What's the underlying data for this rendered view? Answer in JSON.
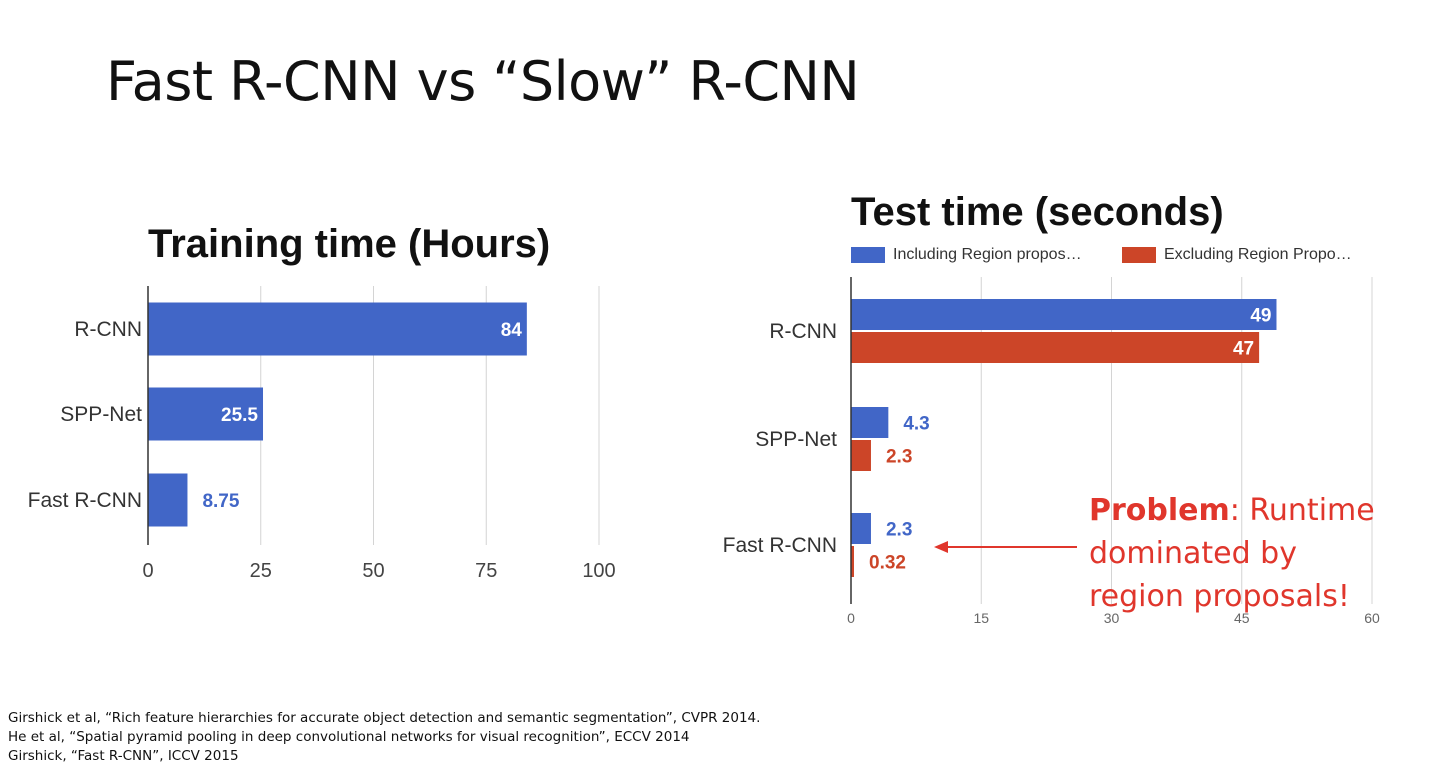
{
  "slide": {
    "title": "Fast R-CNN vs “Slow” R-CNN"
  },
  "annotation": {
    "strong": "Problem",
    "rest_line1": ": Runtime",
    "line2": "dominated by",
    "line3": "region proposals!"
  },
  "references": [
    "Girshick et al, “Rich feature hierarchies for accurate object detection and semantic segmentation”, CVPR 2014.",
    "He et al, “Spatial pyramid pooling in deep convolutional networks for visual recognition”, ECCV 2014",
    "Girshick, “Fast R-CNN”, ICCV 2015"
  ],
  "colors": {
    "blue": "#4166c7",
    "red": "#cc4528",
    "grid": "#d4d4d4",
    "annotation": "#e0362c"
  },
  "chart_data": [
    {
      "type": "bar",
      "orientation": "horizontal",
      "title": "Training time (Hours)",
      "categories": [
        "R-CNN",
        "SPP-Net",
        "Fast R-CNN"
      ],
      "series": [
        {
          "values": [
            84,
            25.5,
            8.75
          ],
          "data_labels": [
            "84",
            "25.5",
            "8.75"
          ]
        }
      ],
      "xlim": [
        0,
        100
      ],
      "xticks": [
        0,
        25,
        50,
        75,
        100
      ],
      "xtick_labels": [
        "0",
        "25",
        "50",
        "75",
        "100"
      ],
      "grid": true,
      "legend": "none"
    },
    {
      "type": "bar",
      "orientation": "horizontal",
      "title": "Test time (seconds)",
      "categories": [
        "R-CNN",
        "SPP-Net",
        "Fast R-CNN"
      ],
      "series": [
        {
          "name": "Including Region propos…",
          "values": [
            49,
            4.3,
            2.3
          ],
          "data_labels": [
            "49",
            "4.3",
            "2.3"
          ]
        },
        {
          "name": "Excluding Region Propo…",
          "values": [
            47,
            2.3,
            0.32
          ],
          "data_labels": [
            "47",
            "2.3",
            "0.32"
          ]
        }
      ],
      "xlim": [
        0,
        60
      ],
      "xticks": [
        0,
        15,
        30,
        45,
        60
      ],
      "xtick_labels": [
        "0",
        "15",
        "30",
        "45",
        "60"
      ],
      "grid": true,
      "legend": "top"
    }
  ]
}
